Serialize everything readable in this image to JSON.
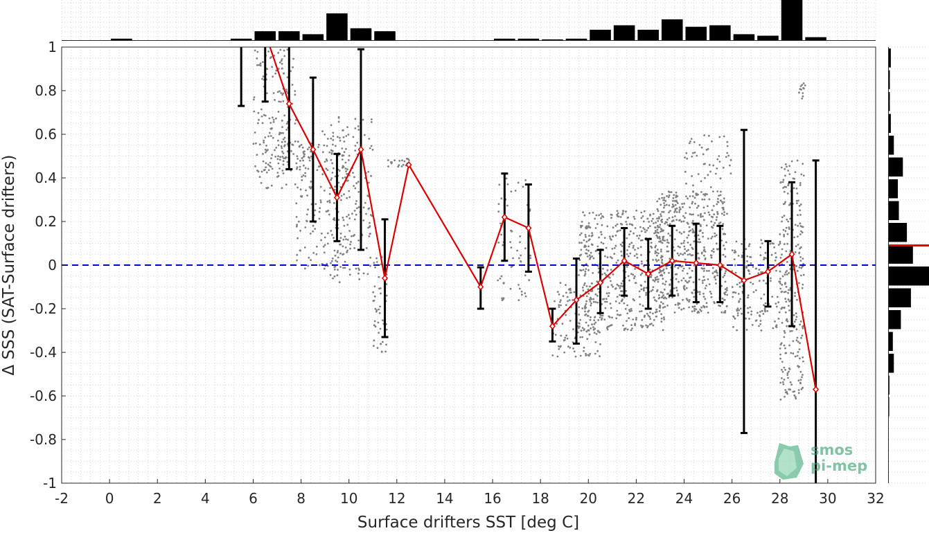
{
  "chart_data": {
    "type": "scatter",
    "title": "",
    "xlabel": "Surface drifters SST [deg C]",
    "ylabel": "Δ SSS (SAT-Surface drifters)",
    "xlim": [
      -2,
      32
    ],
    "ylim": [
      -1,
      1
    ],
    "xticks": [
      "-2",
      "0",
      "2",
      "4",
      "6",
      "8",
      "10",
      "12",
      "14",
      "16",
      "18",
      "20",
      "22",
      "24",
      "26",
      "28",
      "30",
      "32"
    ],
    "yticks": [
      "1",
      "0.8",
      "0.6",
      "0.4",
      "0.2",
      "0",
      "-0.2",
      "-0.4",
      "-0.6",
      "-0.8",
      "-1"
    ],
    "grid": "minor dotted",
    "zero_line": {
      "y": 0,
      "color": "#0000cc",
      "style": "dashed"
    },
    "mean_series": {
      "color": "#dd0000",
      "x": [
        7.5,
        8.5,
        9.5,
        10.5,
        11.5,
        12.5,
        15.5,
        16.5,
        17.5,
        18.5,
        19.5,
        20.5,
        21.5,
        22.5,
        23.5,
        24.5,
        25.5,
        26.5,
        27.5,
        28.5,
        29.5
      ],
      "y": [
        0.74,
        0.53,
        0.31,
        0.53,
        -0.06,
        0.46,
        -0.1,
        0.22,
        0.17,
        -0.28,
        -0.16,
        -0.08,
        0.02,
        -0.04,
        0.02,
        0.01,
        0.0,
        -0.07,
        -0.03,
        0.05,
        -0.57
      ],
      "line_start": {
        "x": 6.7,
        "y": 1.0
      }
    },
    "error_bars": [
      {
        "x": 5.5,
        "lo": 0.73,
        "hi": 1.0
      },
      {
        "x": 6.5,
        "lo": 0.75,
        "hi": 1.0
      },
      {
        "x": 7.5,
        "lo": 0.44,
        "hi": 1.0
      },
      {
        "x": 8.5,
        "lo": 0.2,
        "hi": 0.86
      },
      {
        "x": 9.5,
        "lo": 0.11,
        "hi": 0.51
      },
      {
        "x": 10.5,
        "lo": 0.07,
        "hi": 0.99
      },
      {
        "x": 11.5,
        "lo": -0.33,
        "hi": 0.21
      },
      {
        "x": 15.5,
        "lo": -0.2,
        "hi": -0.01
      },
      {
        "x": 16.5,
        "lo": 0.02,
        "hi": 0.42
      },
      {
        "x": 17.5,
        "lo": -0.03,
        "hi": 0.37
      },
      {
        "x": 18.5,
        "lo": -0.35,
        "hi": -0.2
      },
      {
        "x": 19.5,
        "lo": -0.36,
        "hi": 0.03
      },
      {
        "x": 20.5,
        "lo": -0.22,
        "hi": 0.07
      },
      {
        "x": 21.5,
        "lo": -0.14,
        "hi": 0.17
      },
      {
        "x": 22.5,
        "lo": -0.2,
        "hi": 0.12
      },
      {
        "x": 23.5,
        "lo": -0.14,
        "hi": 0.18
      },
      {
        "x": 24.5,
        "lo": -0.17,
        "hi": 0.19
      },
      {
        "x": 25.5,
        "lo": -0.17,
        "hi": 0.18
      },
      {
        "x": 26.5,
        "lo": -0.77,
        "hi": 0.62
      },
      {
        "x": 27.5,
        "lo": -0.19,
        "hi": 0.11
      },
      {
        "x": 28.5,
        "lo": -0.28,
        "hi": 0.38
      },
      {
        "x": 29.5,
        "lo": -1.0,
        "hi": 0.48
      }
    ],
    "scatter_clusters": [
      {
        "x": [
          6.0,
          7.8
        ],
        "y": [
          0.35,
          0.99
        ],
        "n": 160
      },
      {
        "x": [
          6.5,
          8.5
        ],
        "y": [
          0.43,
          0.57
        ],
        "n": 60
      },
      {
        "x": [
          7.8,
          10.0
        ],
        "y": [
          -0.02,
          0.62
        ],
        "n": 180
      },
      {
        "x": [
          9.2,
          11.0
        ],
        "y": [
          -0.08,
          0.7
        ],
        "n": 150
      },
      {
        "x": [
          11.0,
          11.6
        ],
        "y": [
          -0.4,
          0.05
        ],
        "n": 50
      },
      {
        "x": [
          11.6,
          12.6
        ],
        "y": [
          0.45,
          0.49
        ],
        "n": 20
      },
      {
        "x": [
          16.2,
          17.6
        ],
        "y": [
          -0.17,
          0.4
        ],
        "n": 60
      },
      {
        "x": [
          18.5,
          20.5
        ],
        "y": [
          -0.42,
          -0.08
        ],
        "n": 120
      },
      {
        "x": [
          19.6,
          23.2
        ],
        "y": [
          -0.3,
          0.25
        ],
        "n": 500
      },
      {
        "x": [
          22.8,
          25.8
        ],
        "y": [
          -0.22,
          0.34
        ],
        "n": 500
      },
      {
        "x": [
          24.0,
          26.0
        ],
        "y": [
          0.35,
          0.6
        ],
        "n": 50
      },
      {
        "x": [
          26.0,
          28.0
        ],
        "y": [
          -0.3,
          0.12
        ],
        "n": 150
      },
      {
        "x": [
          28.0,
          29.0
        ],
        "y": [
          -0.62,
          0.48
        ],
        "n": 260
      },
      {
        "x": [
          28.8,
          29.1
        ],
        "y": [
          0.75,
          0.84
        ],
        "n": 12
      }
    ],
    "top_histogram": {
      "bin_width": 1,
      "x": [
        0.5,
        5.5,
        6.5,
        7.5,
        8.5,
        9.5,
        10.5,
        11.5,
        16.5,
        17.5,
        18.5,
        19.5,
        20.5,
        21.5,
        22.5,
        23.5,
        24.5,
        25.5,
        26.5,
        27.5,
        28.5,
        29.5
      ],
      "values": [
        1,
        1,
        6,
        6,
        4,
        18,
        8,
        6,
        1,
        1,
        0.5,
        1,
        7,
        10,
        7,
        14,
        9,
        10,
        4,
        3,
        27,
        2
      ]
    },
    "right_histogram": {
      "bin_width": 0.1,
      "y": [
        0.95,
        0.85,
        0.75,
        0.65,
        0.55,
        0.45,
        0.35,
        0.25,
        0.15,
        0.05,
        -0.05,
        -0.15,
        -0.25,
        -0.35,
        -0.45,
        -0.55,
        -0.65
      ],
      "values": [
        1,
        0.5,
        0.5,
        1,
        2.5,
        7,
        4.5,
        5,
        9,
        12,
        20,
        11,
        6,
        2,
        2.5,
        0.3,
        0.2
      ],
      "mean_marker": 0.09
    }
  },
  "logo": {
    "line1": "smos",
    "line2": "pi-mep"
  },
  "colors": {
    "mean": "#dd0000",
    "zero": "#0000cc",
    "scatter": "#808080",
    "bars": "#000000",
    "logo": "#2e9e6a"
  }
}
